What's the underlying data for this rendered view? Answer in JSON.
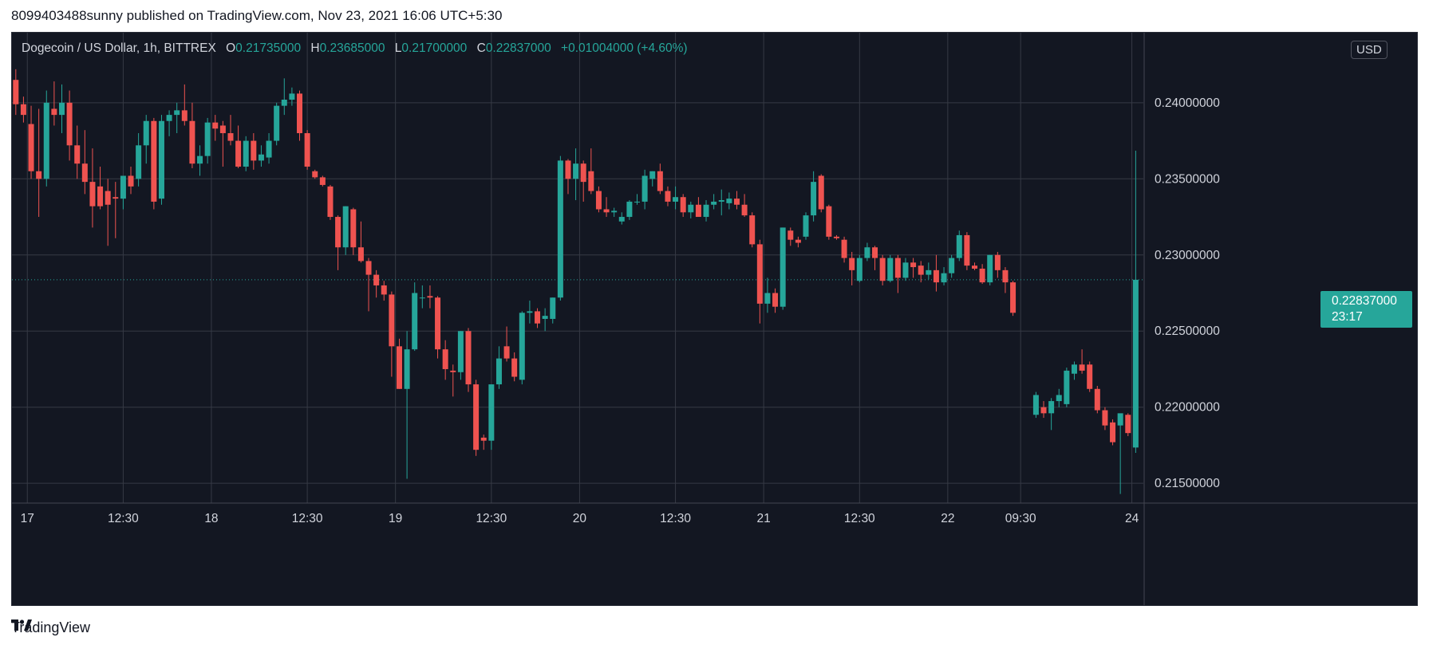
{
  "caption": "8099403488sunny published on TradingView.com, Nov 23, 2021 16:06 UTC+5:30",
  "legend": {
    "symbol": "Dogecoin / US Dollar, 1h, BITTREX",
    "o_label": "O",
    "o_value": "0.21735000",
    "h_label": "H",
    "h_value": "0.23685000",
    "l_label": "L",
    "l_value": "0.21700000",
    "c_label": "C",
    "c_value": "0.22837000",
    "change": "+0.01004000 (+4.60%)"
  },
  "currency_badge": "USD",
  "last_price": {
    "value": "0.22837000",
    "countdown": "23:17"
  },
  "footer": {
    "brand": "TradingView"
  },
  "colors": {
    "up": "#26a69a",
    "down": "#ef5350",
    "background": "#131722",
    "grid": "#363a45",
    "text": "#d1d4dc"
  },
  "chart_data": {
    "type": "candlestick",
    "title": "Dogecoin / US Dollar, 1h, BITTREX",
    "ylim": [
      0.2137,
      0.2446
    ],
    "y_ticks": [
      "0.24000000",
      "0.23500000",
      "0.23000000",
      "0.22500000",
      "0.22000000",
      "0.21500000"
    ],
    "y_tick_values": [
      0.24,
      0.235,
      0.23,
      0.225,
      0.22,
      0.215
    ],
    "x_ticks": [
      {
        "label": "17",
        "hour": 0
      },
      {
        "label": "12:30",
        "hour": 12.5
      },
      {
        "label": "18",
        "hour": 24
      },
      {
        "label": "12:30",
        "hour": 36.5
      },
      {
        "label": "19",
        "hour": 48
      },
      {
        "label": "12:30",
        "hour": 60.5
      },
      {
        "label": "20",
        "hour": 72
      },
      {
        "label": "12:30",
        "hour": 84.5
      },
      {
        "label": "21",
        "hour": 96
      },
      {
        "label": "12:30",
        "hour": 108.5
      },
      {
        "label": "22",
        "hour": 120
      },
      {
        "label": "09:30",
        "hour": 129.5
      },
      {
        "label": "24",
        "hour": 144
      }
    ],
    "grid": true,
    "last_price_line": 0.22837,
    "candles": [
      [
        -1.5,
        0.2415,
        0.2422,
        0.2392,
        0.2399
      ],
      [
        -0.5,
        0.2399,
        0.2404,
        0.2387,
        0.2392
      ],
      [
        0.5,
        0.2386,
        0.2398,
        0.235,
        0.2355
      ],
      [
        1.5,
        0.2355,
        0.2396,
        0.2325,
        0.235
      ],
      [
        2.5,
        0.235,
        0.2408,
        0.2345,
        0.24
      ],
      [
        3.5,
        0.2396,
        0.2414,
        0.2385,
        0.2392
      ],
      [
        4.5,
        0.2392,
        0.2412,
        0.238,
        0.24
      ],
      [
        5.5,
        0.24,
        0.2408,
        0.2362,
        0.2372
      ],
      [
        6.5,
        0.2372,
        0.2385,
        0.235,
        0.236
      ],
      [
        7.5,
        0.236,
        0.2382,
        0.234,
        0.2348
      ],
      [
        8.5,
        0.2348,
        0.237,
        0.2318,
        0.2332
      ],
      [
        9.5,
        0.2345,
        0.2358,
        0.233,
        0.2332
      ],
      [
        10.5,
        0.2342,
        0.235,
        0.2306,
        0.2333
      ],
      [
        11.5,
        0.2338,
        0.2348,
        0.2311,
        0.2337
      ],
      [
        12.5,
        0.2337,
        0.2352,
        0.233,
        0.2352
      ],
      [
        13.5,
        0.2352,
        0.2358,
        0.234,
        0.2345
      ],
      [
        14.5,
        0.235,
        0.238,
        0.2345,
        0.2372
      ],
      [
        15.5,
        0.2372,
        0.2392,
        0.236,
        0.2388
      ],
      [
        16.5,
        0.2388,
        0.239,
        0.233,
        0.2335
      ],
      [
        17.5,
        0.2337,
        0.2392,
        0.2333,
        0.2388
      ],
      [
        18.5,
        0.2388,
        0.2395,
        0.2378,
        0.2392
      ],
      [
        19.5,
        0.2392,
        0.24,
        0.238,
        0.2395
      ],
      [
        20.5,
        0.2395,
        0.2412,
        0.2385,
        0.2388
      ],
      [
        21.5,
        0.2388,
        0.24,
        0.2357,
        0.236
      ],
      [
        22.5,
        0.236,
        0.2372,
        0.2352,
        0.2365
      ],
      [
        23.5,
        0.2365,
        0.239,
        0.236,
        0.2387
      ],
      [
        24.5,
        0.2387,
        0.2392,
        0.2375,
        0.2383
      ],
      [
        25.5,
        0.2385,
        0.2388,
        0.2358,
        0.238
      ],
      [
        26.5,
        0.238,
        0.2392,
        0.2372,
        0.2375
      ],
      [
        27.5,
        0.2375,
        0.2385,
        0.2357,
        0.2358
      ],
      [
        28.5,
        0.2358,
        0.2378,
        0.2355,
        0.2375
      ],
      [
        29.5,
        0.2375,
        0.238,
        0.2356,
        0.2362
      ],
      [
        30.5,
        0.2362,
        0.2372,
        0.2358,
        0.2366
      ],
      [
        31.5,
        0.2364,
        0.238,
        0.236,
        0.2375
      ],
      [
        32.5,
        0.2375,
        0.24,
        0.2372,
        0.2398
      ],
      [
        33.5,
        0.2398,
        0.2416,
        0.2392,
        0.2402
      ],
      [
        34.5,
        0.2402,
        0.241,
        0.2398,
        0.2406
      ],
      [
        35.5,
        0.2406,
        0.2408,
        0.2375,
        0.238
      ],
      [
        36.5,
        0.238,
        0.2382,
        0.2356,
        0.2358
      ],
      [
        37.5,
        0.2355,
        0.2356,
        0.235,
        0.2351
      ],
      [
        38.5,
        0.2351,
        0.2352,
        0.2345,
        0.2346
      ],
      [
        39.5,
        0.2345,
        0.2346,
        0.2323,
        0.2325
      ],
      [
        40.5,
        0.2325,
        0.2326,
        0.229,
        0.2305
      ],
      [
        41.5,
        0.2305,
        0.2332,
        0.23,
        0.2332
      ],
      [
        42.5,
        0.233,
        0.2331,
        0.23,
        0.2305
      ],
      [
        43.5,
        0.2305,
        0.2322,
        0.2295,
        0.2296
      ],
      [
        44.5,
        0.2296,
        0.2298,
        0.2263,
        0.2287
      ],
      [
        45.5,
        0.2287,
        0.229,
        0.2272,
        0.228
      ],
      [
        46.5,
        0.228,
        0.2283,
        0.227,
        0.2274
      ],
      [
        47.5,
        0.2274,
        0.2276,
        0.222,
        0.224
      ],
      [
        48.5,
        0.224,
        0.2245,
        0.2212,
        0.2212
      ],
      [
        49.5,
        0.2212,
        0.225,
        0.2153,
        0.2238
      ],
      [
        50.5,
        0.2238,
        0.2282,
        0.2237,
        0.2275
      ],
      [
        51.5,
        0.2272,
        0.228,
        0.2265,
        0.2272
      ],
      [
        52.5,
        0.2273,
        0.228,
        0.2265,
        0.2272
      ],
      [
        53.5,
        0.2272,
        0.2273,
        0.2232,
        0.2238
      ],
      [
        54.5,
        0.2238,
        0.2244,
        0.2218,
        0.2225
      ],
      [
        55.5,
        0.2224,
        0.2228,
        0.2207,
        0.2223
      ],
      [
        56.5,
        0.2223,
        0.225,
        0.2218,
        0.225
      ],
      [
        57.5,
        0.225,
        0.2252,
        0.221,
        0.2215
      ],
      [
        58.5,
        0.2215,
        0.2218,
        0.2168,
        0.2172
      ],
      [
        59.5,
        0.218,
        0.2182,
        0.2172,
        0.2178
      ],
      [
        60.5,
        0.2178,
        0.2215,
        0.2172,
        0.2215
      ],
      [
        61.5,
        0.2215,
        0.224,
        0.2212,
        0.2232
      ],
      [
        62.5,
        0.224,
        0.2253,
        0.223,
        0.2232
      ],
      [
        63.5,
        0.2232,
        0.2236,
        0.2217,
        0.222
      ],
      [
        64.5,
        0.2218,
        0.2263,
        0.2215,
        0.2262
      ],
      [
        65.5,
        0.2262,
        0.227,
        0.2255,
        0.2263
      ],
      [
        66.5,
        0.2263,
        0.2265,
        0.2252,
        0.2255
      ],
      [
        67.5,
        0.2258,
        0.2265,
        0.225,
        0.226
      ],
      [
        68.5,
        0.2258,
        0.2272,
        0.2255,
        0.2272
      ],
      [
        69.5,
        0.2272,
        0.2365,
        0.227,
        0.2362
      ],
      [
        70.5,
        0.2362,
        0.2363,
        0.234,
        0.235
      ],
      [
        71.5,
        0.235,
        0.237,
        0.2336,
        0.236
      ],
      [
        72.5,
        0.236,
        0.2362,
        0.2335,
        0.2348
      ],
      [
        73.5,
        0.2355,
        0.237,
        0.234,
        0.2342
      ],
      [
        74.5,
        0.2342,
        0.2345,
        0.2328,
        0.233
      ],
      [
        75.5,
        0.233,
        0.2338,
        0.2325,
        0.2328
      ],
      [
        76.5,
        0.2328,
        0.2331,
        0.2325,
        0.2329
      ],
      [
        77.5,
        0.2322,
        0.2328,
        0.232,
        0.2325
      ],
      [
        78.5,
        0.2325,
        0.2336,
        0.2323,
        0.2335
      ],
      [
        79.5,
        0.2335,
        0.234,
        0.2333,
        0.2335
      ],
      [
        80.5,
        0.2335,
        0.2356,
        0.233,
        0.2352
      ],
      [
        81.5,
        0.235,
        0.2355,
        0.2345,
        0.2355
      ],
      [
        82.5,
        0.2355,
        0.236,
        0.234,
        0.2342
      ],
      [
        83.5,
        0.2342,
        0.2345,
        0.2332,
        0.2335
      ],
      [
        84.5,
        0.2335,
        0.2345,
        0.233,
        0.2338
      ],
      [
        85.5,
        0.2338,
        0.234,
        0.2325,
        0.2328
      ],
      [
        86.5,
        0.2328,
        0.2335,
        0.2324,
        0.2333
      ],
      [
        87.5,
        0.2333,
        0.2338,
        0.2327,
        0.2325
      ],
      [
        88.5,
        0.2325,
        0.2336,
        0.2322,
        0.2333
      ],
      [
        89.5,
        0.2333,
        0.234,
        0.233,
        0.2335
      ],
      [
        90.5,
        0.2335,
        0.2343,
        0.2326,
        0.2336
      ],
      [
        91.5,
        0.2334,
        0.2341,
        0.233,
        0.2337
      ],
      [
        92.5,
        0.2337,
        0.2342,
        0.233,
        0.2333
      ],
      [
        93.5,
        0.2333,
        0.234,
        0.2325,
        0.2326
      ],
      [
        94.5,
        0.2326,
        0.2328,
        0.2305,
        0.2307
      ],
      [
        95.5,
        0.2307,
        0.231,
        0.2255,
        0.2268
      ],
      [
        96.5,
        0.2268,
        0.2285,
        0.2262,
        0.2275
      ],
      [
        97.5,
        0.2275,
        0.2278,
        0.2262,
        0.2266
      ],
      [
        98.5,
        0.2266,
        0.2318,
        0.2264,
        0.2318
      ],
      [
        99.5,
        0.2316,
        0.2318,
        0.2306,
        0.231
      ],
      [
        100.5,
        0.231,
        0.2312,
        0.2305,
        0.2308
      ],
      [
        101.5,
        0.2312,
        0.2328,
        0.231,
        0.2326
      ],
      [
        102.5,
        0.2326,
        0.2355,
        0.2322,
        0.2348
      ],
      [
        103.5,
        0.2352,
        0.2353,
        0.2328,
        0.233
      ],
      [
        104.5,
        0.2332,
        0.2333,
        0.231,
        0.2312
      ],
      [
        105.5,
        0.2312,
        0.2313,
        0.231,
        0.2311
      ],
      [
        106.5,
        0.231,
        0.2312,
        0.2295,
        0.2298
      ],
      [
        107.5,
        0.2298,
        0.2302,
        0.228,
        0.229
      ],
      [
        108.5,
        0.2283,
        0.23,
        0.2282,
        0.2298
      ],
      [
        109.5,
        0.2298,
        0.2308,
        0.2296,
        0.2305
      ],
      [
        110.5,
        0.2305,
        0.2306,
        0.229,
        0.2298
      ],
      [
        111.5,
        0.2298,
        0.23,
        0.228,
        0.2283
      ],
      [
        112.5,
        0.2283,
        0.23,
        0.2282,
        0.2298
      ],
      [
        113.5,
        0.2298,
        0.23,
        0.2275,
        0.2285
      ],
      [
        114.5,
        0.2285,
        0.2298,
        0.2283,
        0.2295
      ],
      [
        115.5,
        0.2295,
        0.2298,
        0.2285,
        0.2292
      ],
      [
        116.5,
        0.2293,
        0.2296,
        0.2282,
        0.2287
      ],
      [
        117.5,
        0.2287,
        0.2295,
        0.2284,
        0.229
      ],
      [
        118.5,
        0.229,
        0.23,
        0.2276,
        0.2282
      ],
      [
        119.5,
        0.2282,
        0.2292,
        0.228,
        0.2288
      ],
      [
        120.5,
        0.2288,
        0.23,
        0.2285,
        0.2298
      ],
      [
        121.5,
        0.2298,
        0.2316,
        0.2296,
        0.2313
      ],
      [
        122.5,
        0.2313,
        0.2315,
        0.229,
        0.2293
      ],
      [
        123.5,
        0.2293,
        0.2295,
        0.229,
        0.2291
      ],
      [
        124.5,
        0.2291,
        0.2294,
        0.2281,
        0.2282
      ],
      [
        125.5,
        0.2282,
        0.23,
        0.228,
        0.23
      ],
      [
        126.5,
        0.23,
        0.2302,
        0.2285,
        0.229
      ],
      [
        127.5,
        0.229,
        0.2292,
        0.2275,
        0.2282
      ],
      [
        128.5,
        0.2282,
        0.2283,
        0.226,
        0.2262
      ],
      [
        129.5,
        null,
        null,
        null,
        null
      ],
      [
        131.5,
        0.2195,
        0.221,
        0.2193,
        0.2208
      ],
      [
        132.5,
        0.22,
        0.2204,
        0.2193,
        0.2196
      ],
      [
        133.5,
        0.2196,
        0.2206,
        0.2185,
        0.2204
      ],
      [
        134.5,
        0.2204,
        0.2212,
        0.22,
        0.2208
      ],
      [
        135.5,
        0.2202,
        0.2226,
        0.22,
        0.2224
      ],
      [
        136.5,
        0.2222,
        0.223,
        0.2218,
        0.2228
      ],
      [
        137.5,
        0.2228,
        0.2238,
        0.2222,
        0.2224
      ],
      [
        138.5,
        0.2228,
        0.223,
        0.221,
        0.2212
      ],
      [
        139.5,
        0.2212,
        0.2214,
        0.2196,
        0.2198
      ],
      [
        140.5,
        0.2198,
        0.22,
        0.2185,
        0.2188
      ],
      [
        141.5,
        0.219,
        0.2192,
        0.2175,
        0.2177
      ],
      [
        142.5,
        0.2188,
        0.2194,
        0.2143,
        0.2196
      ],
      [
        143.5,
        0.2195,
        0.2196,
        0.2181,
        0.2183
      ],
      [
        144.5,
        0.21735,
        0.23685,
        0.217,
        0.22837
      ]
    ]
  }
}
